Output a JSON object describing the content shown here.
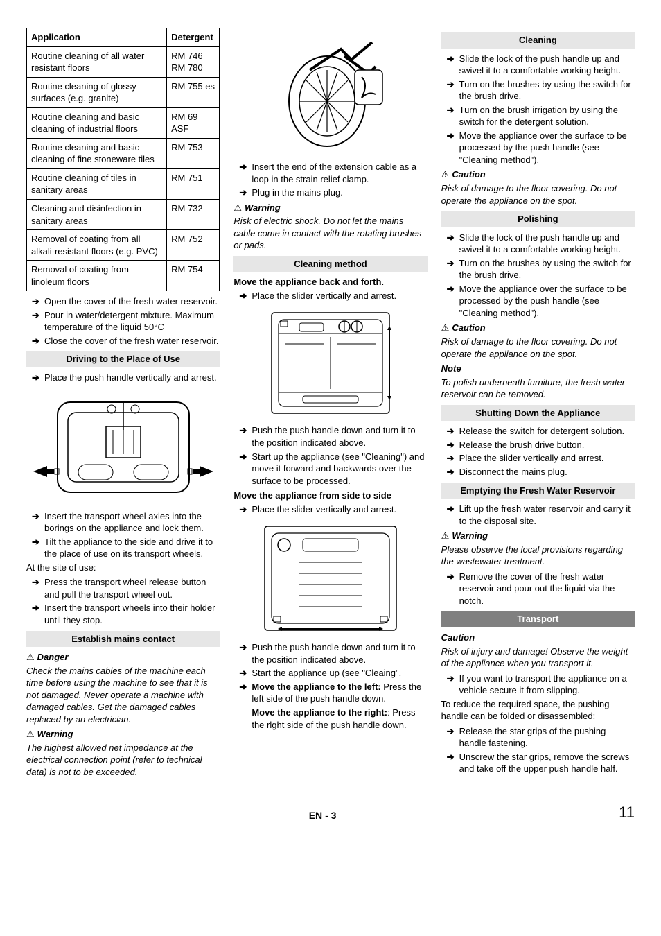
{
  "table": {
    "headers": [
      "Application",
      "Detergent"
    ],
    "rows": [
      [
        "Routine cleaning of all water resistant floors",
        "RM 746\nRM 780"
      ],
      [
        "Routine cleaning of glossy surfaces (e.g. granite)",
        "RM 755 es"
      ],
      [
        "Routine cleaning and basic cleaning of industrial floors",
        "RM 69 ASF"
      ],
      [
        "Routine cleaning and basic cleaning of fine stoneware tiles",
        "RM 753"
      ],
      [
        "Routine cleaning of tiles in sanitary areas",
        "RM 751"
      ],
      [
        "Cleaning and disinfection in sanitary areas",
        "RM 732"
      ],
      [
        "Removal of coating from all alkali-resistant floors (e.g. PVC)",
        "RM 752"
      ],
      [
        "Removal of coating from linoleum floors",
        "RM 754"
      ]
    ]
  },
  "col1": {
    "steps_after_table": [
      "Open the cover of the fresh water reservoir.",
      "Pour in water/detergent mixture. Maximum temperature of the liquid 50°C",
      "Close the cover of the fresh water reservoir."
    ],
    "driving_head": "Driving to the Place of Use",
    "driving_step": "Place the push handle vertically and arrest.",
    "post_fig1": [
      "Insert the transport wheel axles into the borings on the appliance and lock them.",
      "Tilt the appliance to the side and drive it to the place of use on its transport wheels."
    ],
    "site_label": "At the site of use:",
    "site_steps": [
      "Press the transport wheel release button and pull the transport wheel out.",
      "Insert the transport wheels into their holder until they stop."
    ],
    "mains_head": "Establish  mains contact",
    "danger_label": "Danger",
    "danger_text": "Check the mains cables of the machine each time before using the machine to see that it is not damaged.  Never operate a machine with damaged cables.  Get the damaged cables replaced  by an electrician.",
    "warn1_label": "Warning",
    "warn1_text": "The highest allowed net impedance at the electrical connection point (refer to technical data) is not to be exceeded."
  },
  "col2": {
    "fig2_steps": [
      "Insert the end of the extension cable as a loop in the strain relief clamp.",
      "Plug in the mains plug."
    ],
    "warn_label": "Warning",
    "warn_text": "Risk of electric shock. Do not let the mains cable come in contact with the rotating brushes or pads.",
    "cleaning_method_head": "Cleaning method",
    "move_bf_head": "Move the appliance back and forth.",
    "move_bf_step": "Place the slider vertically and arrest.",
    "fig3_steps": [
      "Push the push handle down and turn it to the position indicated above.",
      "Start up the appliance (see \"Cleaning\") and move it forward and  backwards over the surface to be processed."
    ],
    "move_ss_head": "Move the appliance from side to side",
    "move_ss_step": "Place the slider vertically and arrest.",
    "fig4_steps": [
      "Push the push handle down and turn it to the position indicated above.",
      "Start the appliance up (see \"Cleaing\"."
    ],
    "fig4_step3_pre": "Move the appliance to the left: ",
    "fig4_step3_post": "Press the left side of the push handle down.",
    "right_pre": "Move the appliance to the right:",
    "right_post": ": Press the rlght side of the push handle down."
  },
  "col3": {
    "cleaning_head": "Cleaning",
    "cleaning_steps": [
      "Slide the lock of the push handle up and swivel it to a comfortable working height.",
      "Turn on the brushes by using the switch for the brush drive.",
      "Turn on the brush irrigation by using the switch for the detergent solution.",
      "Move the appliance over the surface to be processed by the push handle (see \"Cleaning method\")."
    ],
    "caution1_label": "Caution",
    "caution1_text": "Risk of damage to the floor covering. Do not operate the appliance on the spot.",
    "polishing_head": "Polishing",
    "polishing_steps": [
      "Slide the lock of the push handle up and swivel it to a comfortable working height.",
      "Turn on the brushes by using the switch for the brush drive.",
      "Move the appliance over the surface to be processed by the push handle (see \"Cleaning method\")."
    ],
    "caution2_label": "Caution",
    "caution2_text": "Risk of damage to the floor covering. Do not operate the appliance on the spot.",
    "note_label": "Note",
    "note_text": "To polish underneath furniture, the fresh water reservoir can be removed.",
    "shutdown_head": "Shutting Down the Appliance",
    "shutdown_steps": [
      "Release the switch for detergent solution.",
      "Release the brush drive button.",
      "Place the slider vertically and arrest.",
      "Disconnect the mains plug."
    ],
    "empty_head": "Emptying the Fresh Water Reservoir",
    "empty_step1": "Lift up the fresh water reservoir and carry it to the disposal site.",
    "warn_label": "Warning",
    "warn_text": "Please observe the local provisions regarding the wastewater treatment.",
    "empty_step2": "Remove the cover of the fresh water reservoir and pour out the liquid via the notch.",
    "transport_head": "Transport",
    "transport_caution_label": "Caution",
    "transport_caution_text": "Risk of injury and damage! Observe the weight of the appliance when you transport it.",
    "transport_step1": "If you want to transport the appliance on a vehicle secure it from slipping.",
    "transport_para": "To reduce the required space, the pushing handle can be folded or disassembled:",
    "transport_steps2": [
      "Release the star grips of the pushing handle fastening.",
      "Unscrew the star grips, remove the screws and take off the upper push handle half."
    ]
  },
  "footer": {
    "lang": "EN",
    "sep": " - ",
    "page_inner": "3",
    "page_outer": "11"
  }
}
